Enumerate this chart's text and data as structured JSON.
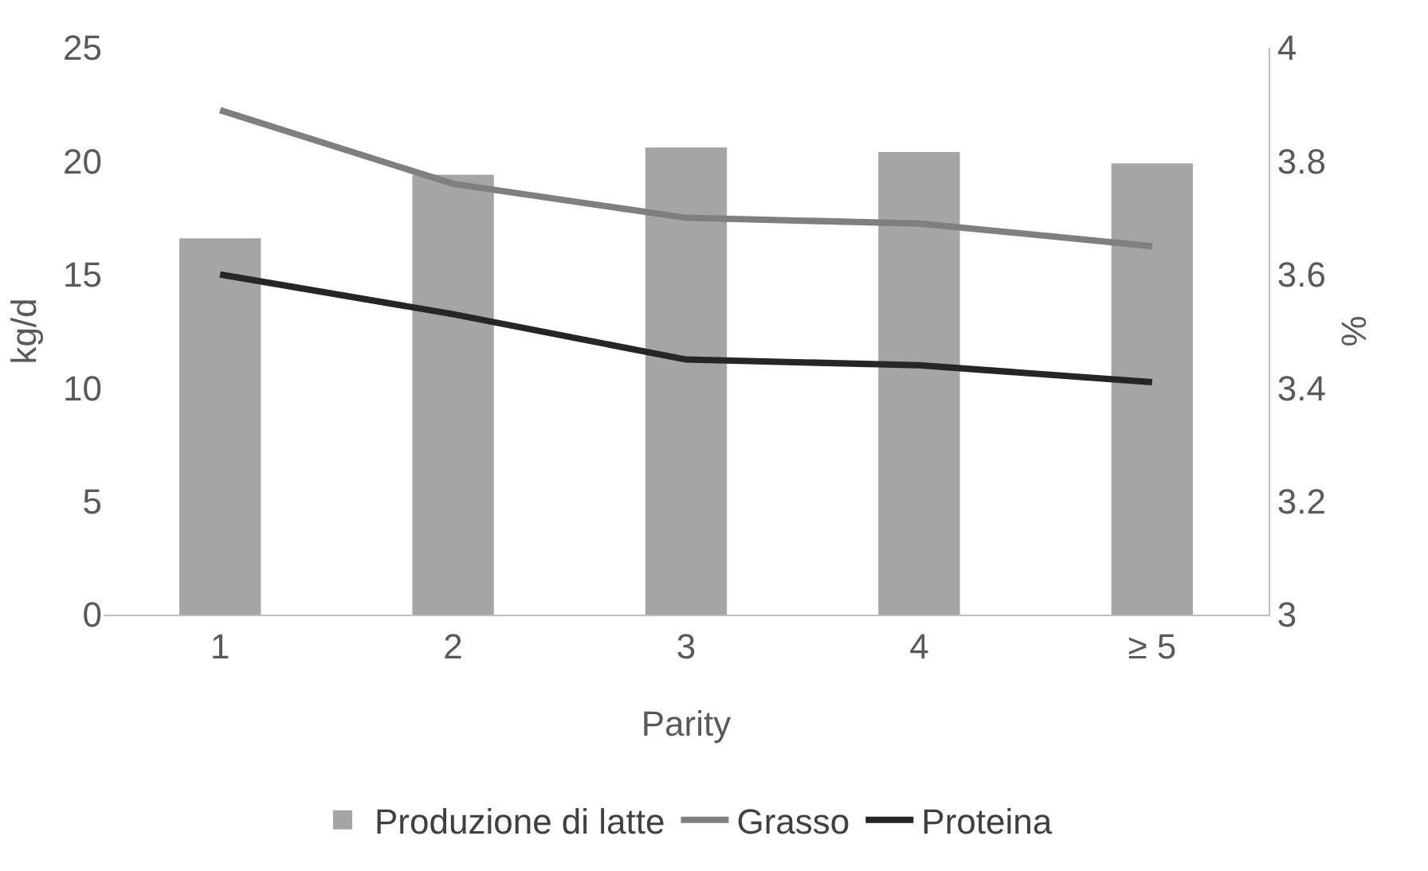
{
  "chart_data": {
    "type": "bar",
    "categories": [
      "1",
      "2",
      "3",
      "4",
      "≥ 5"
    ],
    "xlabel": "Parity",
    "ylabel": "kg/d",
    "y2label": "%",
    "ylim": [
      0,
      25
    ],
    "yticks": [
      0,
      5,
      10,
      15,
      20,
      25
    ],
    "y2lim": [
      3,
      4
    ],
    "y2ticks": [
      3,
      {
        "value": 3.2,
        "label": "3.2"
      },
      {
        "value": 3.4,
        "label": "3.4"
      },
      {
        "value": 3.6,
        "label": "3.6"
      },
      {
        "value": 3.8,
        "label": "3.8"
      },
      4
    ],
    "grid": false,
    "legend": "bottom",
    "series": [
      {
        "name": "Produzione di latte",
        "color": "#a5a5a5",
        "values": [
          16.6,
          19.4,
          20.6,
          20.4,
          19.9
        ]
      },
      {
        "name": "Grasso",
        "type": "line",
        "axis": "y2",
        "color": "#7f7f7f",
        "values": [
          3.89,
          3.76,
          3.7,
          3.69,
          3.65
        ]
      },
      {
        "name": "Proteina",
        "type": "line",
        "axis": "y2",
        "color": "#262626",
        "values": [
          3.6,
          3.53,
          3.45,
          3.44,
          3.41
        ]
      }
    ]
  }
}
